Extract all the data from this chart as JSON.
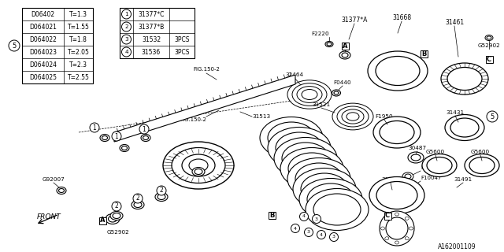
{
  "bg_color": "#ffffff",
  "part_number": "A162001109",
  "legend_rows": [
    [
      "D06402",
      "T=1.3"
    ],
    [
      "D064021",
      "T=1.55"
    ],
    [
      "D064022",
      "T=1.8"
    ],
    [
      "D064023",
      "T=2.05"
    ],
    [
      "D064024",
      "T=2.3"
    ],
    [
      "D064025",
      "T=2.55"
    ]
  ],
  "numbered_parts": [
    [
      "1",
      "31377*C",
      ""
    ],
    [
      "2",
      "31377*B",
      ""
    ],
    [
      "3",
      "31532",
      "3PCS"
    ],
    [
      "4",
      "31536",
      "3PCS"
    ]
  ],
  "front_text": "FRONT"
}
